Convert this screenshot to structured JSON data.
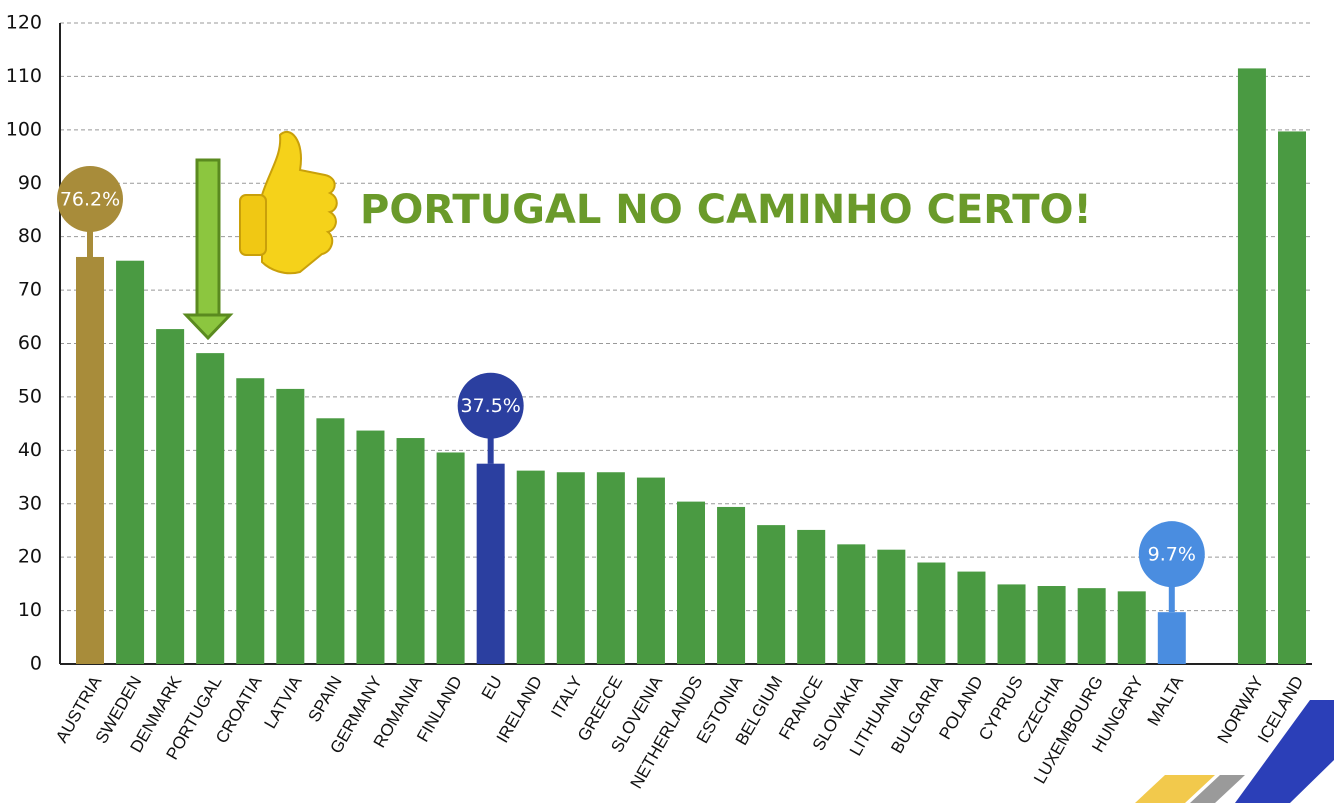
{
  "chart_data": {
    "type": "bar",
    "annotation": "PORTUGAL NO CAMINHO CERTO!",
    "categories": [
      "AUSTRIA",
      "SWEDEN",
      "DENMARK",
      "PORTUGAL",
      "CROATIA",
      "LATVIA",
      "SPAIN",
      "GERMANY",
      "ROMANIA",
      "FINLAND",
      "EU",
      "IRELAND",
      "ITALY",
      "GREECE",
      "SLOVENIA",
      "NETHERLANDS",
      "ESTONIA",
      "BELGIUM",
      "FRANCE",
      "SLOVAKIA",
      "LITHUANIA",
      "BULGARIA",
      "POLAND",
      "CYPRUS",
      "CZECHIA",
      "LUXEMBOURG",
      "HUNGARY",
      "MALTA",
      null,
      "NORWAY",
      "ICELAND"
    ],
    "values": [
      76.2,
      75.5,
      62.7,
      58.2,
      53.5,
      51.5,
      46,
      43.7,
      42.3,
      39.6,
      37.5,
      36.2,
      35.9,
      35.9,
      34.9,
      30.4,
      29.4,
      26,
      25.1,
      22.4,
      21.4,
      19,
      17.3,
      14.9,
      14.6,
      14.2,
      13.6,
      9.7,
      null,
      111.5,
      99.7
    ],
    "value_labels": [
      "76.2%",
      null,
      null,
      null,
      null,
      null,
      null,
      null,
      null,
      null,
      "37.5%",
      null,
      null,
      null,
      null,
      null,
      null,
      null,
      null,
      null,
      null,
      null,
      null,
      null,
      null,
      null,
      null,
      "9.7%",
      null,
      null,
      null
    ],
    "colors": [
      "#a88c3a",
      "#4a9a42",
      "#4a9a42",
      "#4a9a42",
      "#4a9a42",
      "#4a9a42",
      "#4a9a42",
      "#4a9a42",
      "#4a9a42",
      "#4a9a42",
      "#2b3fa0",
      "#4a9a42",
      "#4a9a42",
      "#4a9a42",
      "#4a9a42",
      "#4a9a42",
      "#4a9a42",
      "#4a9a42",
      "#4a9a42",
      "#4a9a42",
      "#4a9a42",
      "#4a9a42",
      "#4a9a42",
      "#4a9a42",
      "#4a9a42",
      "#4a9a42",
      "#4a9a42",
      "#4a8de0",
      null,
      "#4a9a42",
      "#4a9a42"
    ],
    "ylim": [
      0,
      120
    ],
    "yticks": [
      0,
      10,
      20,
      30,
      40,
      50,
      60,
      70,
      80,
      90,
      100,
      110,
      120
    ],
    "grid": true
  }
}
